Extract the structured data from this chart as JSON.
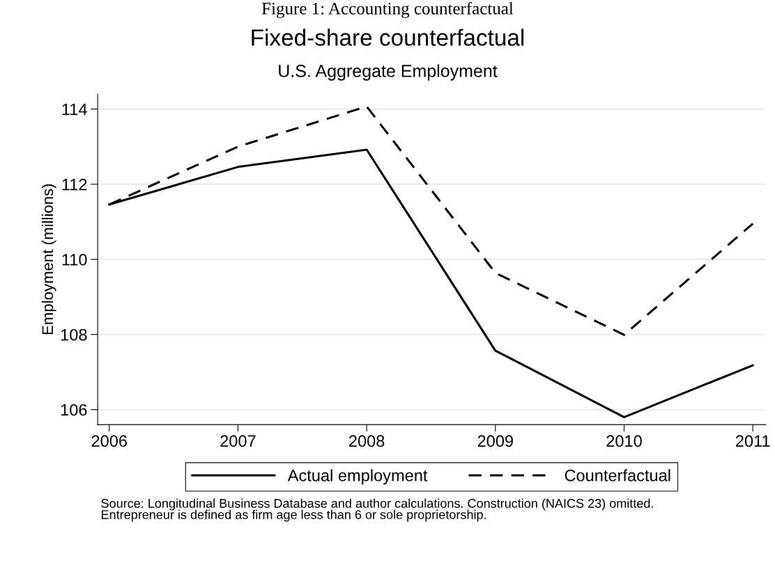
{
  "chart_data": {
    "type": "line",
    "title": "Fixed-share counterfactual",
    "subtitle": "U.S. Aggregate Employment",
    "ylabel": "Employment (millions)",
    "x": [
      2006,
      2007,
      2008,
      2009,
      2010,
      2011
    ],
    "series": [
      {
        "name": "Actual employment",
        "color": "#000000",
        "line_style": "solid",
        "values": [
          111.46,
          112.46,
          112.92,
          107.57,
          105.8,
          107.18
        ]
      },
      {
        "name": "Counterfactual",
        "color": "#000000",
        "line_style": "dashed",
        "values": [
          111.46,
          113.0,
          114.07,
          109.64,
          107.99,
          110.95
        ]
      }
    ],
    "xlim": [
      2005.91,
      2011.1
    ],
    "xticks": [
      2006,
      2007,
      2008,
      2009,
      2010,
      2011
    ],
    "ylim": [
      105.6,
      114.4
    ],
    "yticks": [
      106,
      108,
      110,
      112,
      114
    ],
    "grid": "y",
    "legend": "bottom",
    "marker": "none",
    "annotations": [
      "Figure 1: Accounting counterfactual",
      "Source: Longitudinal Business Database and author calculations. Construction (NAICS 23) omitted.\nEntrepreneur is defined as firm age less than 6 or sole proprietorship."
    ]
  }
}
